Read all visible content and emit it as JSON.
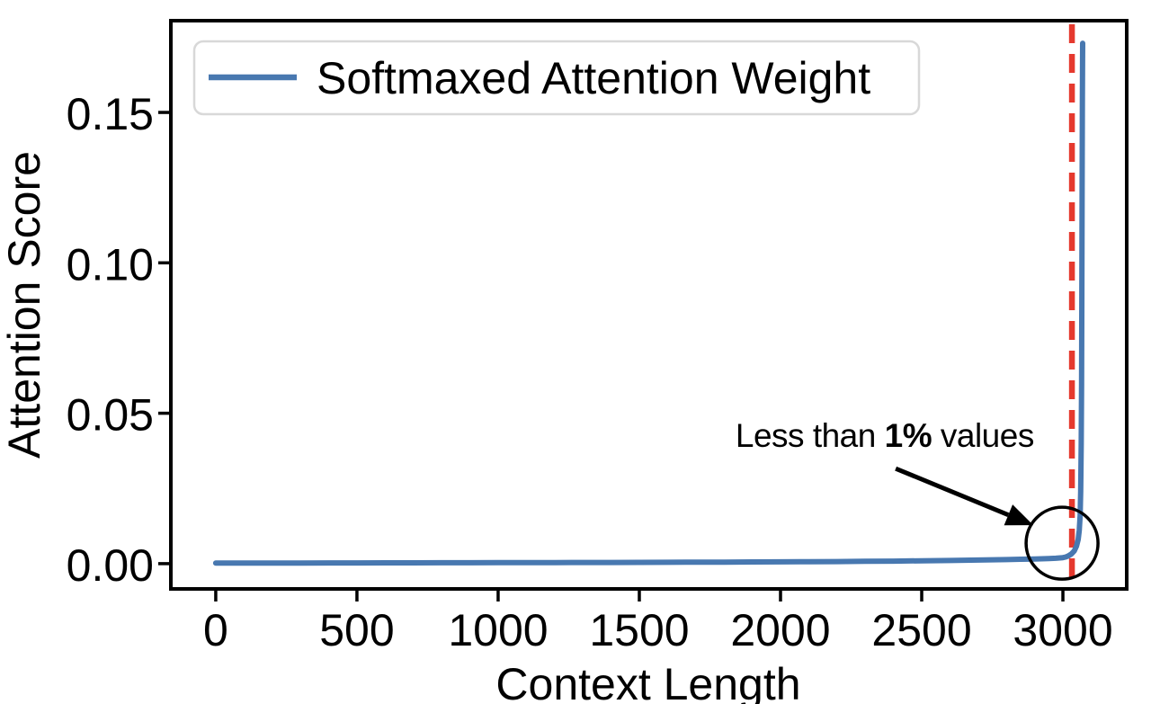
{
  "figure": {
    "background": "#ffffff",
    "axis_color": "#000000",
    "legend_border_color": "#d8d8d8",
    "legend_fill": "#ffffff"
  },
  "chart_data": {
    "type": "line",
    "title": "",
    "xlabel": "Context Length",
    "ylabel": "Attention Score",
    "grid": false,
    "xlim": [
      -159,
      3226
    ],
    "ylim": [
      -0.0084,
      0.1805
    ],
    "xticks": {
      "values": [
        0,
        500,
        1000,
        1500,
        2000,
        2500,
        3000
      ],
      "labels": [
        "0",
        "500",
        "1000",
        "1500",
        "2000",
        "2500",
        "3000"
      ]
    },
    "yticks": {
      "values": [
        0,
        0.05,
        0.1,
        0.15
      ],
      "labels": [
        "0.00",
        "0.05",
        "0.10",
        "0.15"
      ]
    },
    "legend": {
      "position": "upper left",
      "entries": [
        {
          "label": "Softmaxed Attention Weight",
          "color": "#4878b0"
        }
      ]
    },
    "series": [
      {
        "name": "Softmaxed Attention Weight",
        "color": "#4878b0",
        "line_width": 6,
        "points": [
          [
            0,
            0.0002
          ],
          [
            100,
            0.0002
          ],
          [
            200,
            0.0002
          ],
          [
            300,
            0.00022
          ],
          [
            400,
            0.00024
          ],
          [
            500,
            0.00025
          ],
          [
            600,
            0.00026
          ],
          [
            700,
            0.00028
          ],
          [
            800,
            0.0003
          ],
          [
            900,
            0.0003
          ],
          [
            1000,
            0.00032
          ],
          [
            1100,
            0.00034
          ],
          [
            1200,
            0.00036
          ],
          [
            1300,
            0.00038
          ],
          [
            1400,
            0.0004
          ],
          [
            1500,
            0.00042
          ],
          [
            1600,
            0.00045
          ],
          [
            1700,
            0.0005
          ],
          [
            1800,
            0.00052
          ],
          [
            1900,
            0.00056
          ],
          [
            2000,
            0.0006
          ],
          [
            2100,
            0.00065
          ],
          [
            2200,
            0.0007
          ],
          [
            2300,
            0.00078
          ],
          [
            2400,
            0.00085
          ],
          [
            2500,
            0.00095
          ],
          [
            2600,
            0.00105
          ],
          [
            2700,
            0.0012
          ],
          [
            2800,
            0.00135
          ],
          [
            2850,
            0.00145
          ],
          [
            2900,
            0.00155
          ],
          [
            2950,
            0.0017
          ],
          [
            2975,
            0.0018
          ],
          [
            3000,
            0.002
          ],
          [
            3010,
            0.0022
          ],
          [
            3020,
            0.0026
          ],
          [
            3030,
            0.0032
          ],
          [
            3040,
            0.0042
          ],
          [
            3048,
            0.0058
          ],
          [
            3054,
            0.008
          ],
          [
            3058,
            0.011
          ],
          [
            3061,
            0.016
          ],
          [
            3063,
            0.024
          ],
          [
            3065,
            0.04
          ],
          [
            3066,
            0.06
          ],
          [
            3067,
            0.09
          ],
          [
            3068,
            0.125
          ],
          [
            3069,
            0.155
          ],
          [
            3069.5,
            0.168
          ],
          [
            3070,
            0.173
          ]
        ]
      }
    ],
    "vline": {
      "x": 3032,
      "color": "#e5392e",
      "style": "dashed",
      "width": 6.5,
      "dash": [
        21,
        12
      ]
    },
    "annotations": {
      "note": {
        "text": "Less than 1% values",
        "parts": {
          "pre": "Less than ",
          "bold": "1%",
          "post": " values"
        },
        "x": 2369,
        "y": 0.0388
      },
      "arrow": {
        "from": [
          2408,
          0.0316
        ],
        "to": [
          2895,
          0.0128
        ],
        "color": "#000000"
      },
      "circle": {
        "x": 2997,
        "y": 0.0068,
        "radius_px": 40,
        "color": "#000000"
      }
    }
  }
}
